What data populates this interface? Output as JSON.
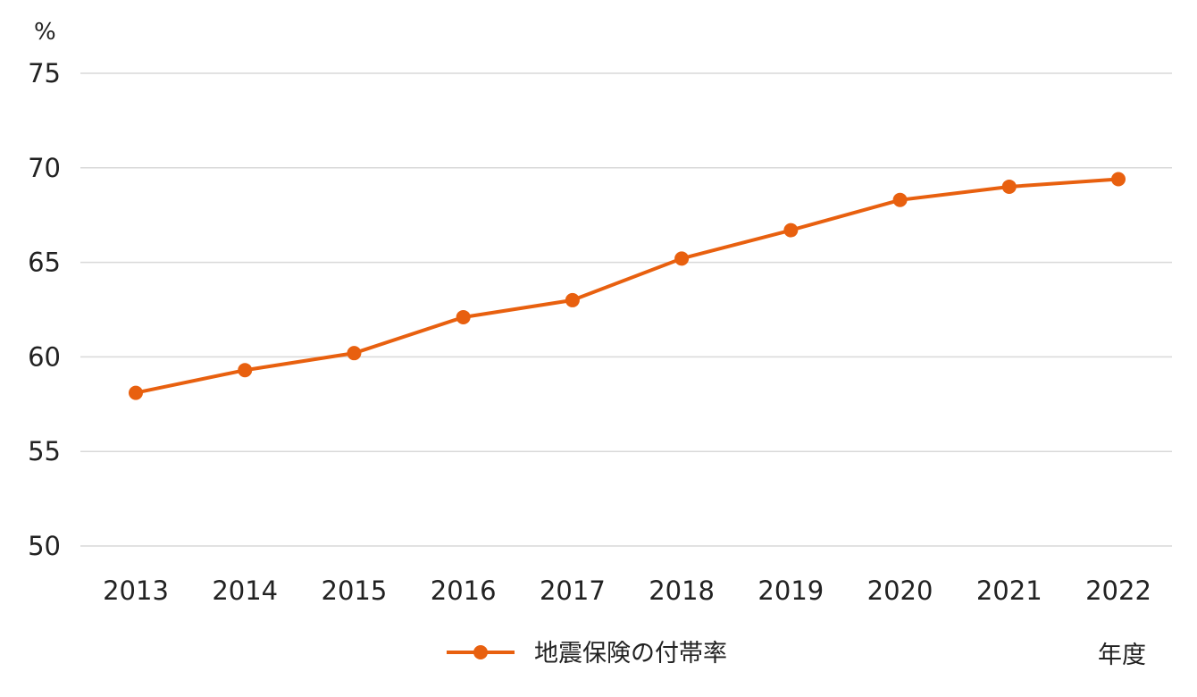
{
  "chart_data": {
    "type": "line",
    "ylabel": "%",
    "xlabel": "年度",
    "ylim": [
      50,
      75
    ],
    "yticks": [
      50,
      55,
      60,
      65,
      70,
      75
    ],
    "categories": [
      "2013",
      "2014",
      "2015",
      "2016",
      "2017",
      "2018",
      "2019",
      "2020",
      "2021",
      "2022"
    ],
    "series": [
      {
        "name": "地震保険の付帯率",
        "color": "#e8600f",
        "values": [
          58.1,
          59.3,
          60.2,
          62.1,
          63.0,
          65.2,
          66.7,
          68.3,
          69.0,
          69.4
        ]
      }
    ],
    "grid": true,
    "legend_position": "bottom"
  }
}
